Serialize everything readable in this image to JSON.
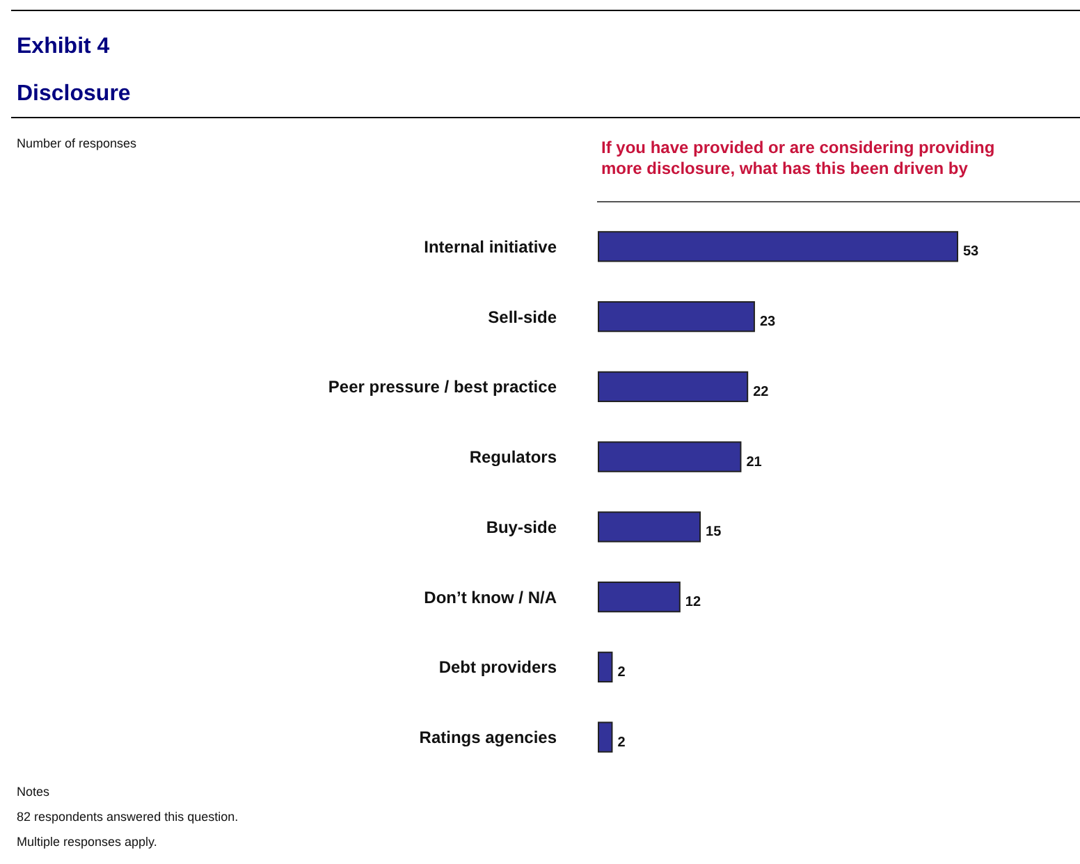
{
  "chart_data": {
    "type": "bar",
    "orientation": "horizontal",
    "title": "Exhibit 4",
    "subtitle": "Disclosure",
    "categories": [
      "Internal initiative",
      "Sell-side",
      "Peer pressure / best practice",
      "Regulators",
      "Buy-side",
      "Don’t know / N/A",
      "Debt providers",
      "Ratings agencies"
    ],
    "values": [
      53,
      23,
      22,
      21,
      15,
      12,
      2,
      2
    ],
    "color": "#333399",
    "data_labels": true,
    "annotations": [
      "Number of responses",
      "If you have provided or are considering providing more disclosure, what has this been driven by",
      "Notes",
      "82 respondents answered this question.",
      "Multiple responses apply."
    ]
  }
}
